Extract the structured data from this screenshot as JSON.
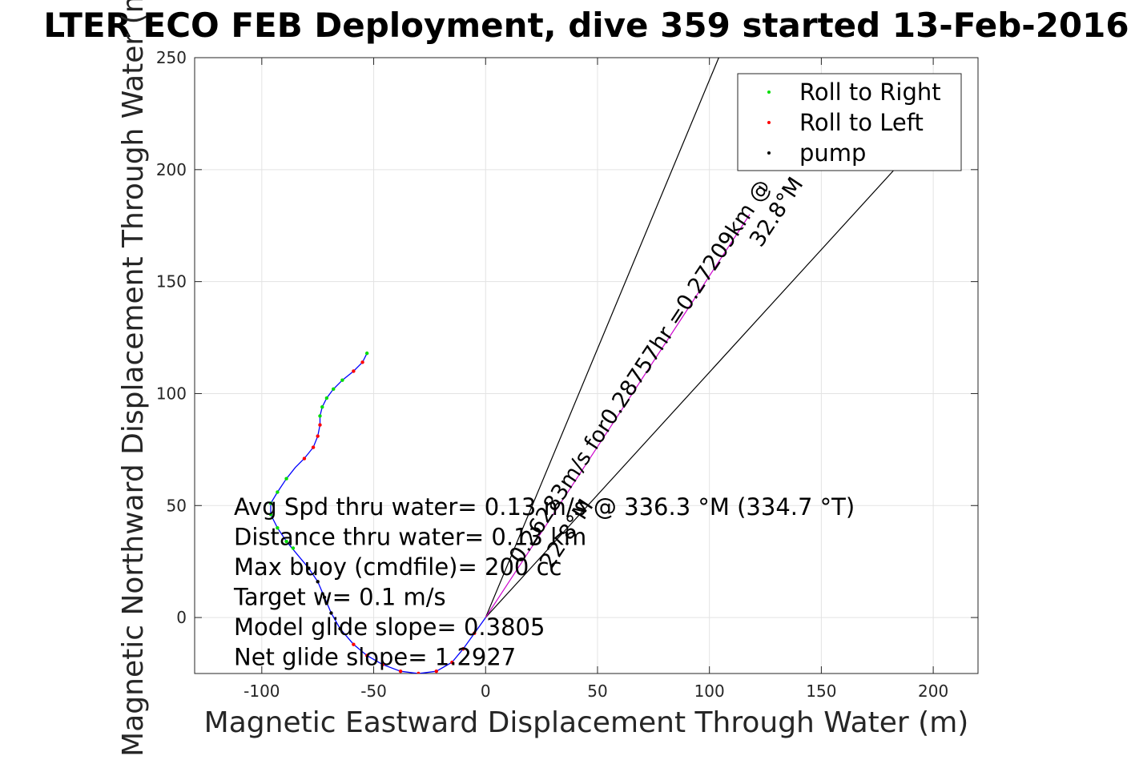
{
  "chart_data": {
    "type": "line",
    "title": "LTER ECO FEB Deployment, dive 359 started 13-Feb-2016",
    "xlabel": "Magnetic Eastward Displacement Through Water (m)",
    "ylabel": "Magnetic Northward Displacement Through Water (m)",
    "xlim": [
      -130,
      220
    ],
    "ylim": [
      -25,
      250
    ],
    "xticks": [
      -100,
      -50,
      0,
      50,
      100,
      150,
      200
    ],
    "yticks": [
      0,
      50,
      100,
      150,
      200,
      250
    ],
    "grid": true,
    "legend": {
      "placement": "top-right",
      "entries": [
        {
          "label": "Roll to Right",
          "color": "#00dd00"
        },
        {
          "label": "Roll to Left",
          "color": "#ff0000"
        },
        {
          "label": "pump",
          "color": "#000000"
        }
      ]
    },
    "track": {
      "name": "glider track",
      "color": "#0000ff",
      "x": [
        0,
        -5,
        -10,
        -15,
        -22,
        -30,
        -38,
        -46,
        -53,
        -59,
        -65,
        -69,
        -72,
        -75,
        -79,
        -84,
        -89,
        -93,
        -96,
        -96,
        -93,
        -89,
        -85,
        -81,
        -77,
        -75,
        -74,
        -74,
        -73,
        -71,
        -68,
        -64,
        -59,
        -55,
        -53
      ],
      "y": [
        0,
        -7,
        -14,
        -20,
        -24,
        -25,
        -24,
        -21,
        -17,
        -12,
        -5,
        2,
        9,
        16,
        22,
        28,
        34,
        40,
        46,
        51,
        56,
        62,
        67,
        71,
        76,
        81,
        86,
        90,
        94,
        98,
        102,
        106,
        110,
        114,
        118
      ]
    },
    "markers": {
      "roll_right": {
        "color": "#00dd00",
        "x": [
          -96,
          -96,
          -93,
          -89,
          -86,
          -89,
          -93,
          -74,
          -73,
          -71,
          -68,
          -64,
          -53
        ],
        "y": [
          46,
          51,
          56,
          62,
          31,
          34,
          40,
          90,
          94,
          98,
          102,
          106,
          118
        ]
      },
      "roll_left": {
        "color": "#ff0000",
        "x": [
          -5,
          -10,
          -15,
          -22,
          -30,
          -38,
          -46,
          -53,
          -59,
          -81,
          -77,
          -75,
          -74,
          -59,
          -55
        ],
        "y": [
          -7,
          -14,
          -20,
          -24,
          -25,
          -24,
          -21,
          -17,
          -12,
          71,
          76,
          81,
          86,
          110,
          114
        ]
      },
      "pump": {
        "color": "#000000",
        "x": [
          -65,
          -69,
          -72,
          -75,
          -79
        ],
        "y": [
          -5,
          2,
          9,
          16,
          22
        ]
      }
    },
    "reference_lines": [
      {
        "name": "heading-32.8",
        "color": "#000000",
        "x": [
          0,
          105
        ],
        "y": [
          0,
          252
        ]
      },
      {
        "name": "heading-22.8",
        "color": "#000000",
        "x": [
          0,
          189
        ],
        "y": [
          0,
          207
        ]
      },
      {
        "name": "mean-current",
        "color": "#cc00cc",
        "x": [
          0,
          118
        ],
        "y": [
          0,
          180
        ]
      }
    ],
    "annotations": {
      "rotated_main": "0.26283m/s for0.28757hr =0.27209km @",
      "rotated_heading_upper": "32.8°M",
      "rotated_heading_lower": "22.8°M",
      "stats": [
        "Avg Spd thru water=  0.13 m/s @ 336.3 °M (334.7 °T)",
        "Distance thru water=  0.13 km",
        "Max buoy (cmdfile)= 200 cc",
        "Target w= 0.1 m/s",
        "Model glide slope= 0.3805",
        "Net glide slope= 1.2927"
      ]
    }
  }
}
